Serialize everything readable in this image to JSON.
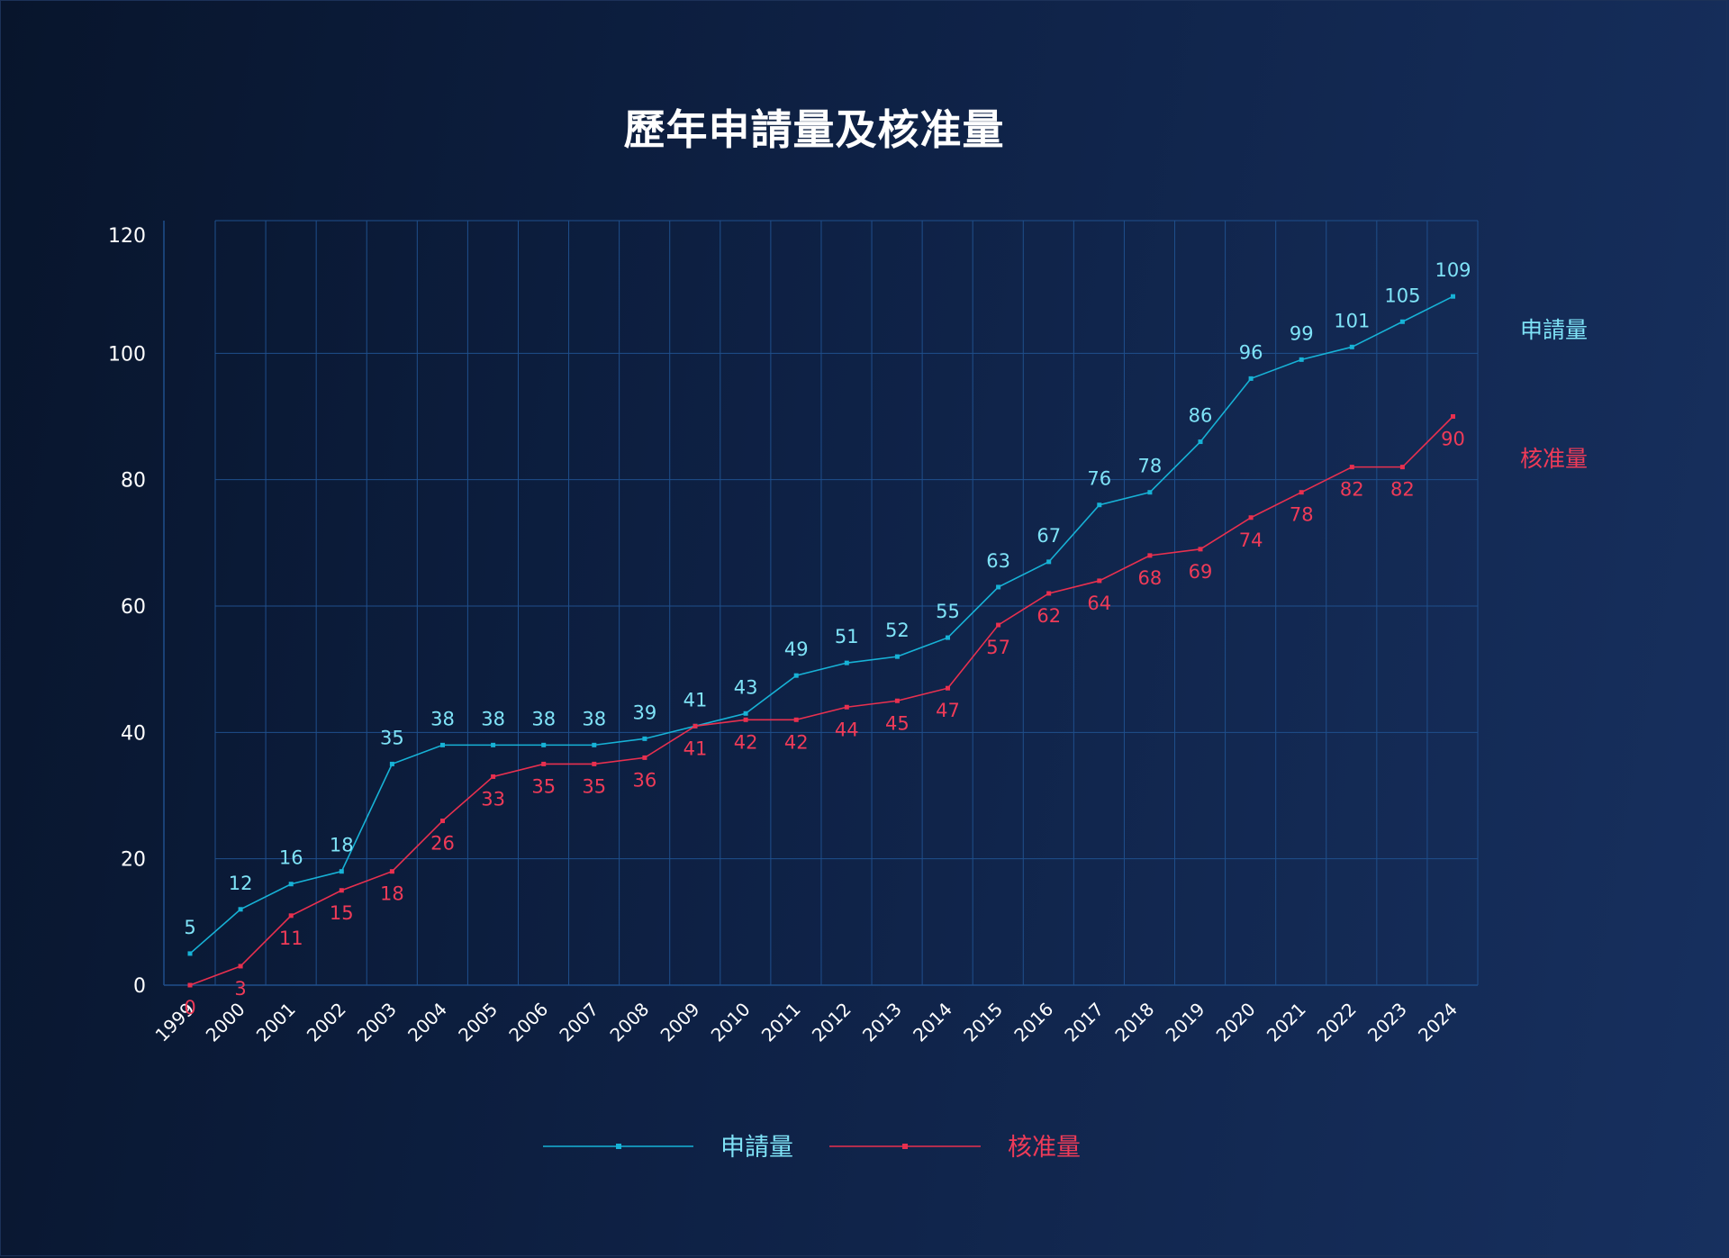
{
  "chart_data": {
    "type": "line",
    "title": "歷年申請量及核准量",
    "xlabel": "",
    "ylabel": "",
    "ylim": [
      0,
      120
    ],
    "yticks": [
      0,
      20,
      40,
      60,
      80,
      100,
      120
    ],
    "grid": true,
    "legend_position": "bottom",
    "categories": [
      "1999",
      "2000",
      "2001",
      "2002",
      "2003",
      "2004",
      "2005",
      "2006",
      "2007",
      "2008",
      "2009",
      "2010",
      "2011",
      "2012",
      "2013",
      "2014",
      "2015",
      "2016",
      "2017",
      "2018",
      "2019",
      "2020",
      "2021",
      "2022",
      "2023",
      "2024"
    ],
    "series": [
      {
        "name": "申請量",
        "color": "#17b2d6",
        "label_color": "#7fe3f7",
        "values": [
          5,
          12,
          16,
          18,
          35,
          38,
          38,
          38,
          38,
          39,
          41,
          43,
          49,
          51,
          52,
          55,
          63,
          67,
          76,
          78,
          86,
          96,
          99,
          101,
          105,
          109
        ]
      },
      {
        "name": "核准量",
        "color": "#e8304f",
        "label_color": "#ef3b58",
        "values": [
          0,
          3,
          11,
          15,
          18,
          26,
          33,
          35,
          35,
          36,
          41,
          42,
          42,
          44,
          45,
          47,
          57,
          62,
          64,
          68,
          69,
          74,
          78,
          82,
          82,
          90
        ]
      }
    ]
  },
  "colors": {
    "grid": "#1f4f8c",
    "axis_text": "#ffffff",
    "title": "#ffffff"
  }
}
